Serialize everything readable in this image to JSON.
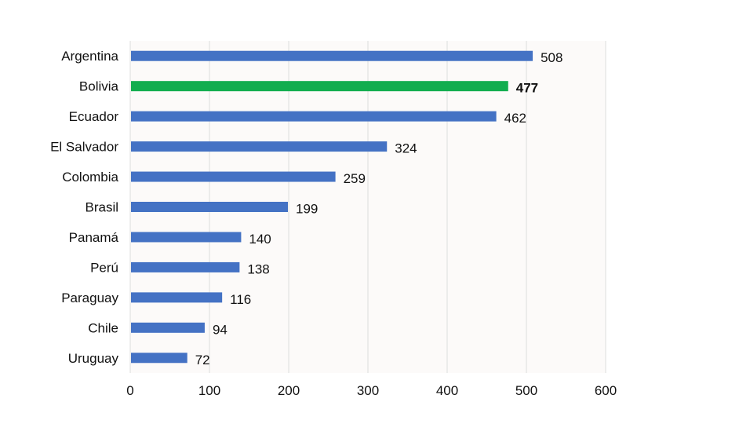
{
  "chart_data": {
    "type": "bar",
    "orientation": "horizontal",
    "title": "",
    "xlabel": "",
    "ylabel": "",
    "categories": [
      "Argentina",
      "Bolivia",
      "Ecuador",
      "El Salvador",
      "Colombia",
      "Brasil",
      "Panamá",
      "Perú",
      "Paraguay",
      "Chile",
      "Uruguay"
    ],
    "values": [
      508,
      477,
      462,
      324,
      259,
      199,
      140,
      138,
      116,
      94,
      72
    ],
    "highlight": "Bolivia",
    "xlim": [
      0,
      600
    ],
    "xticks": [
      0,
      100,
      200,
      300,
      400,
      500,
      600
    ],
    "grid": true,
    "legend": "none",
    "colors": {
      "default": "#4472c4",
      "highlight": "#12ad4f",
      "plot_bg": "#fcfaf9",
      "grid": "#dddddd"
    }
  }
}
